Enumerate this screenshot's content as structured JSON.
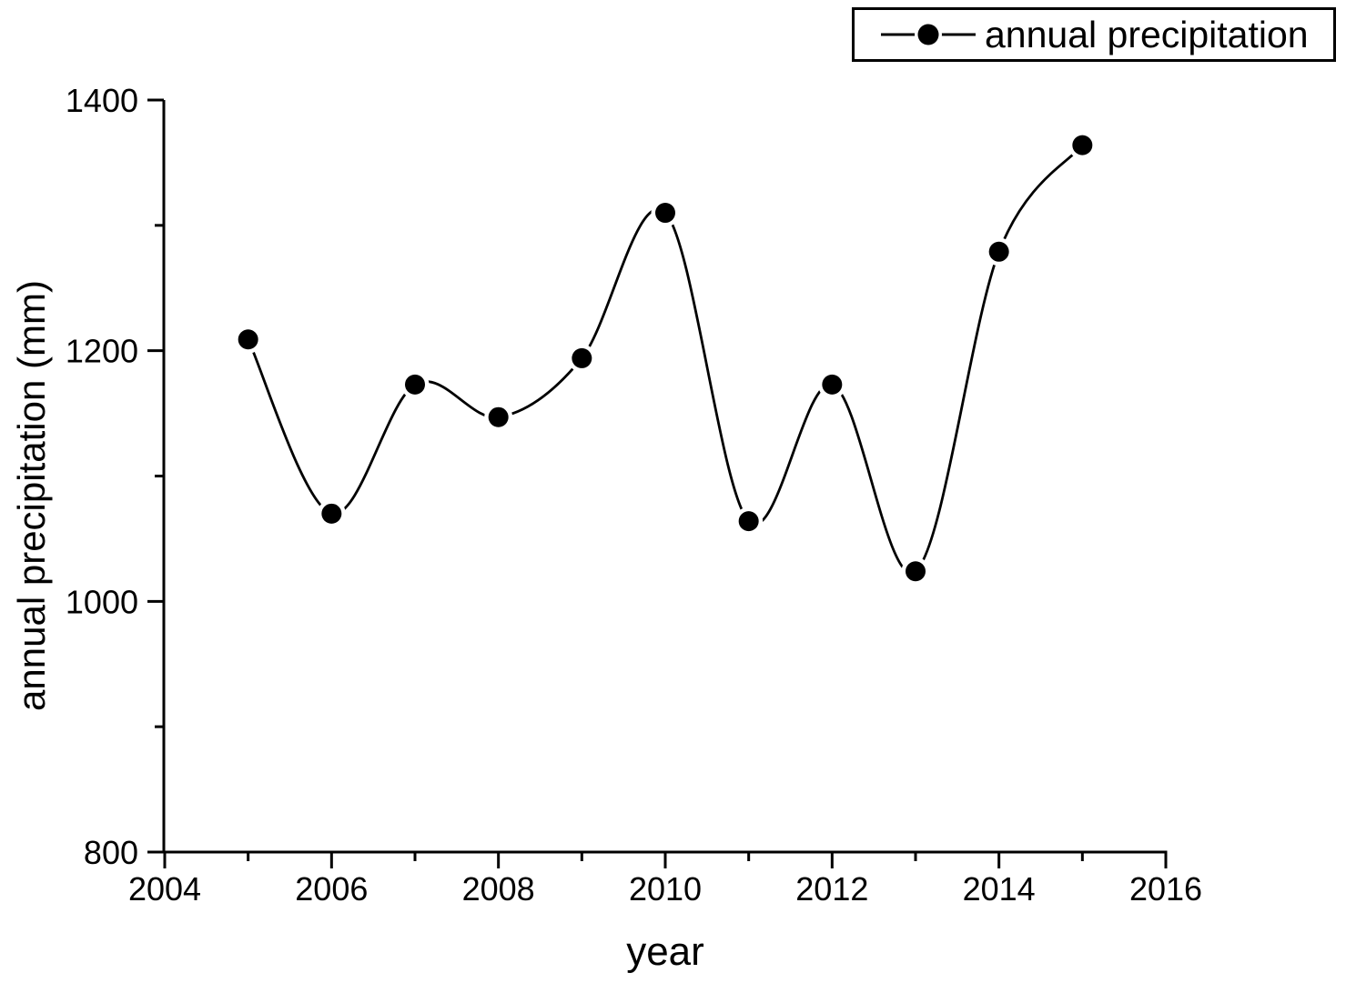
{
  "chart_data": {
    "type": "line",
    "title": "",
    "xlabel": "year",
    "ylabel": "annual precipitation (mm)",
    "legend": {
      "label": "annual precipitation",
      "position": "top-right"
    },
    "x": [
      2005,
      2006,
      2007,
      2008,
      2009,
      2010,
      2011,
      2012,
      2013,
      2014,
      2015
    ],
    "y": [
      1209,
      1070,
      1173,
      1147,
      1194,
      1310,
      1064,
      1173,
      1024,
      1279,
      1364
    ],
    "xlim": [
      2004,
      2016
    ],
    "ylim": [
      800,
      1400
    ],
    "x_major_ticks": [
      2004,
      2006,
      2008,
      2010,
      2012,
      2014,
      2016
    ],
    "x_minor_ticks": [
      2005,
      2007,
      2009,
      2011,
      2013,
      2015
    ],
    "y_major_ticks": [
      800,
      1000,
      1200,
      1400
    ],
    "y_minor_ticks": [
      900,
      1100,
      1300
    ],
    "grid": false,
    "curve": "smooth-spline",
    "marker": "filled-circle",
    "line_color": "#000000",
    "marker_color": "#000000",
    "background_color": "#ffffff",
    "axis_color": "#000000"
  }
}
